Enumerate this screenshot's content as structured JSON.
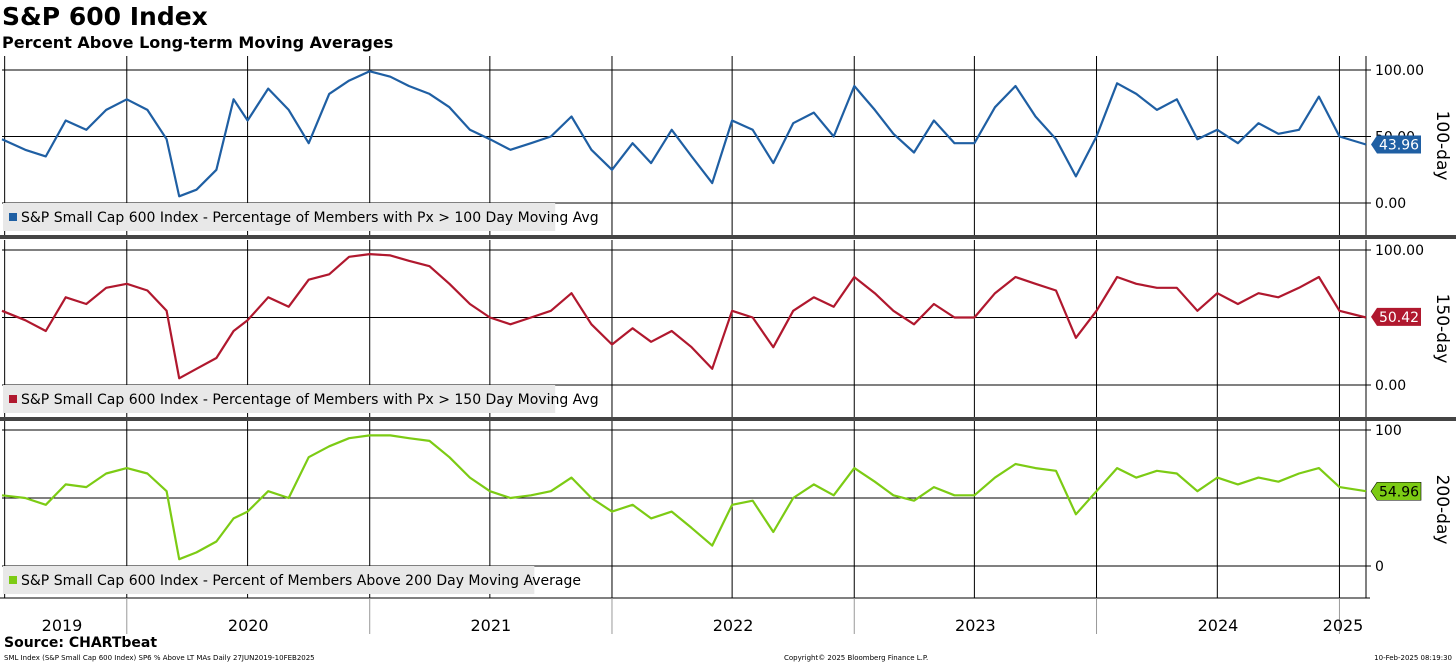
{
  "header": {
    "title": "S&P 600 Index",
    "subtitle": "Percent Above Long-term Moving Averages"
  },
  "footer": {
    "source": "Source: CHARTbeat",
    "left_note": "SML Index (S&P Small Cap 600 Index) SP6 % Above LT MAs  Daily 27JUN2019-10FEB2025",
    "copyright": "Copyright© 2025 Bloomberg Finance L.P.",
    "date": "10-Feb-2025 08:19:30"
  },
  "colors": {
    "series_100": "#1f5fa3",
    "series_150": "#b0182e",
    "series_200": "#7ccb14",
    "grid": "#000000",
    "legend_bg": "#e8e8e8"
  },
  "chart_data": {
    "type": "line",
    "x_range": [
      "2019-06-27",
      "2025-02-10"
    ],
    "x_ticks": [
      "2019",
      "2020",
      "2021",
      "2022",
      "2023",
      "2024",
      "2025"
    ],
    "grid": true,
    "panels": [
      {
        "side_label": "100-day",
        "y_tick_labels": [
          "100.00",
          "50.00",
          "0.00"
        ],
        "ylim": [
          0,
          100
        ],
        "last_value_label": "43.96",
        "series": [
          {
            "name": "S&P Small Cap 600 Index - Percentage of Members with Px > 100 Day Moving Avg",
            "color": "#1f5fa3",
            "x": [
              "2019-06-27",
              "2019-08-01",
              "2019-09-01",
              "2019-10-01",
              "2019-11-01",
              "2019-12-01",
              "2020-01-01",
              "2020-02-01",
              "2020-03-01",
              "2020-03-20",
              "2020-04-15",
              "2020-05-15",
              "2020-06-10",
              "2020-07-01",
              "2020-08-01",
              "2020-09-01",
              "2020-10-01",
              "2020-11-01",
              "2020-12-01",
              "2021-01-01",
              "2021-02-01",
              "2021-03-01",
              "2021-04-01",
              "2021-05-01",
              "2021-06-01",
              "2021-07-01",
              "2021-08-01",
              "2021-09-01",
              "2021-10-01",
              "2021-11-01",
              "2021-12-01",
              "2022-01-01",
              "2022-02-01",
              "2022-03-01",
              "2022-04-01",
              "2022-05-01",
              "2022-06-01",
              "2022-07-01",
              "2022-08-01",
              "2022-09-01",
              "2022-10-01",
              "2022-11-01",
              "2022-12-01",
              "2023-01-01",
              "2023-02-01",
              "2023-03-01",
              "2023-04-01",
              "2023-05-01",
              "2023-06-01",
              "2023-07-01",
              "2023-08-01",
              "2023-09-01",
              "2023-10-01",
              "2023-11-01",
              "2023-12-01",
              "2024-01-01",
              "2024-02-01",
              "2024-03-01",
              "2024-04-01",
              "2024-05-01",
              "2024-06-01",
              "2024-07-01",
              "2024-08-01",
              "2024-09-01",
              "2024-10-01",
              "2024-11-01",
              "2024-12-01",
              "2025-01-01",
              "2025-02-10"
            ],
            "y": [
              48,
              40,
              35,
              62,
              55,
              70,
              78,
              70,
              48,
              5,
              10,
              25,
              78,
              62,
              86,
              70,
              45,
              82,
              92,
              99,
              95,
              88,
              82,
              72,
              55,
              48,
              40,
              45,
              50,
              65,
              40,
              25,
              45,
              30,
              55,
              35,
              15,
              62,
              55,
              30,
              60,
              68,
              50,
              88,
              70,
              52,
              38,
              62,
              45,
              45,
              72,
              88,
              65,
              48,
              20,
              50,
              90,
              82,
              70,
              78,
              48,
              55,
              45,
              60,
              52,
              55,
              80,
              50,
              44
            ]
          }
        ]
      },
      {
        "side_label": "150-day",
        "y_tick_labels": [
          "100.00",
          "0.00"
        ],
        "ylim": [
          0,
          100
        ],
        "last_value_label": "50.42",
        "series": [
          {
            "name": "S&P Small Cap 600 Index - Percentage of Members with Px > 150 Day Moving Avg",
            "color": "#b0182e",
            "x": [
              "2019-06-27",
              "2019-08-01",
              "2019-09-01",
              "2019-10-01",
              "2019-11-01",
              "2019-12-01",
              "2020-01-01",
              "2020-02-01",
              "2020-03-01",
              "2020-03-20",
              "2020-04-15",
              "2020-05-15",
              "2020-06-10",
              "2020-07-01",
              "2020-08-01",
              "2020-09-01",
              "2020-10-01",
              "2020-11-01",
              "2020-12-01",
              "2021-01-01",
              "2021-02-01",
              "2021-03-01",
              "2021-04-01",
              "2021-05-01",
              "2021-06-01",
              "2021-07-01",
              "2021-08-01",
              "2021-09-01",
              "2021-10-01",
              "2021-11-01",
              "2021-12-01",
              "2022-01-01",
              "2022-02-01",
              "2022-03-01",
              "2022-04-01",
              "2022-05-01",
              "2022-06-01",
              "2022-07-01",
              "2022-08-01",
              "2022-09-01",
              "2022-10-01",
              "2022-11-01",
              "2022-12-01",
              "2023-01-01",
              "2023-02-01",
              "2023-03-01",
              "2023-04-01",
              "2023-05-01",
              "2023-06-01",
              "2023-07-01",
              "2023-08-01",
              "2023-09-01",
              "2023-10-01",
              "2023-11-01",
              "2023-12-01",
              "2024-01-01",
              "2024-02-01",
              "2024-03-01",
              "2024-04-01",
              "2024-05-01",
              "2024-06-01",
              "2024-07-01",
              "2024-08-01",
              "2024-09-01",
              "2024-10-01",
              "2024-11-01",
              "2024-12-01",
              "2025-01-01",
              "2025-02-10"
            ],
            "y": [
              55,
              48,
              40,
              65,
              60,
              72,
              75,
              70,
              55,
              5,
              12,
              20,
              40,
              48,
              65,
              58,
              78,
              82,
              95,
              97,
              96,
              92,
              88,
              75,
              60,
              50,
              45,
              50,
              55,
              68,
              45,
              30,
              42,
              32,
              40,
              28,
              12,
              55,
              50,
              28,
              55,
              65,
              58,
              80,
              68,
              55,
              45,
              60,
              50,
              50,
              68,
              80,
              75,
              70,
              35,
              55,
              80,
              75,
              72,
              72,
              55,
              68,
              60,
              68,
              65,
              72,
              80,
              55,
              50
            ]
          }
        ]
      },
      {
        "side_label": "200-day",
        "y_tick_labels": [
          "100",
          "0"
        ],
        "ylim": [
          0,
          100
        ],
        "last_value_label": "54.96",
        "series": [
          {
            "name": "S&P Small Cap 600 Index - Percent of Members Above 200 Day Moving Average",
            "color": "#7ccb14",
            "x": [
              "2019-06-27",
              "2019-08-01",
              "2019-09-01",
              "2019-10-01",
              "2019-11-01",
              "2019-12-01",
              "2020-01-01",
              "2020-02-01",
              "2020-03-01",
              "2020-03-20",
              "2020-04-15",
              "2020-05-15",
              "2020-06-10",
              "2020-07-01",
              "2020-08-01",
              "2020-09-01",
              "2020-10-01",
              "2020-11-01",
              "2020-12-01",
              "2021-01-01",
              "2021-02-01",
              "2021-03-01",
              "2021-04-01",
              "2021-05-01",
              "2021-06-01",
              "2021-07-01",
              "2021-08-01",
              "2021-09-01",
              "2021-10-01",
              "2021-11-01",
              "2021-12-01",
              "2022-01-01",
              "2022-02-01",
              "2022-03-01",
              "2022-04-01",
              "2022-05-01",
              "2022-06-01",
              "2022-07-01",
              "2022-08-01",
              "2022-09-01",
              "2022-10-01",
              "2022-11-01",
              "2022-12-01",
              "2023-01-01",
              "2023-02-01",
              "2023-03-01",
              "2023-04-01",
              "2023-05-01",
              "2023-06-01",
              "2023-07-01",
              "2023-08-01",
              "2023-09-01",
              "2023-10-01",
              "2023-11-01",
              "2023-12-01",
              "2024-01-01",
              "2024-02-01",
              "2024-03-01",
              "2024-04-01",
              "2024-05-01",
              "2024-06-01",
              "2024-07-01",
              "2024-08-01",
              "2024-09-01",
              "2024-10-01",
              "2024-11-01",
              "2024-12-01",
              "2025-01-01",
              "2025-02-10"
            ],
            "y": [
              52,
              50,
              45,
              60,
              58,
              68,
              72,
              68,
              55,
              5,
              10,
              18,
              35,
              40,
              55,
              50,
              80,
              88,
              94,
              96,
              96,
              94,
              92,
              80,
              65,
              55,
              50,
              52,
              55,
              65,
              50,
              40,
              45,
              35,
              40,
              28,
              15,
              45,
              48,
              25,
              50,
              60,
              52,
              72,
              62,
              52,
              48,
              58,
              52,
              52,
              65,
              75,
              72,
              70,
              38,
              55,
              72,
              65,
              70,
              68,
              55,
              65,
              60,
              65,
              62,
              68,
              72,
              58,
              55
            ]
          }
        ]
      }
    ]
  }
}
